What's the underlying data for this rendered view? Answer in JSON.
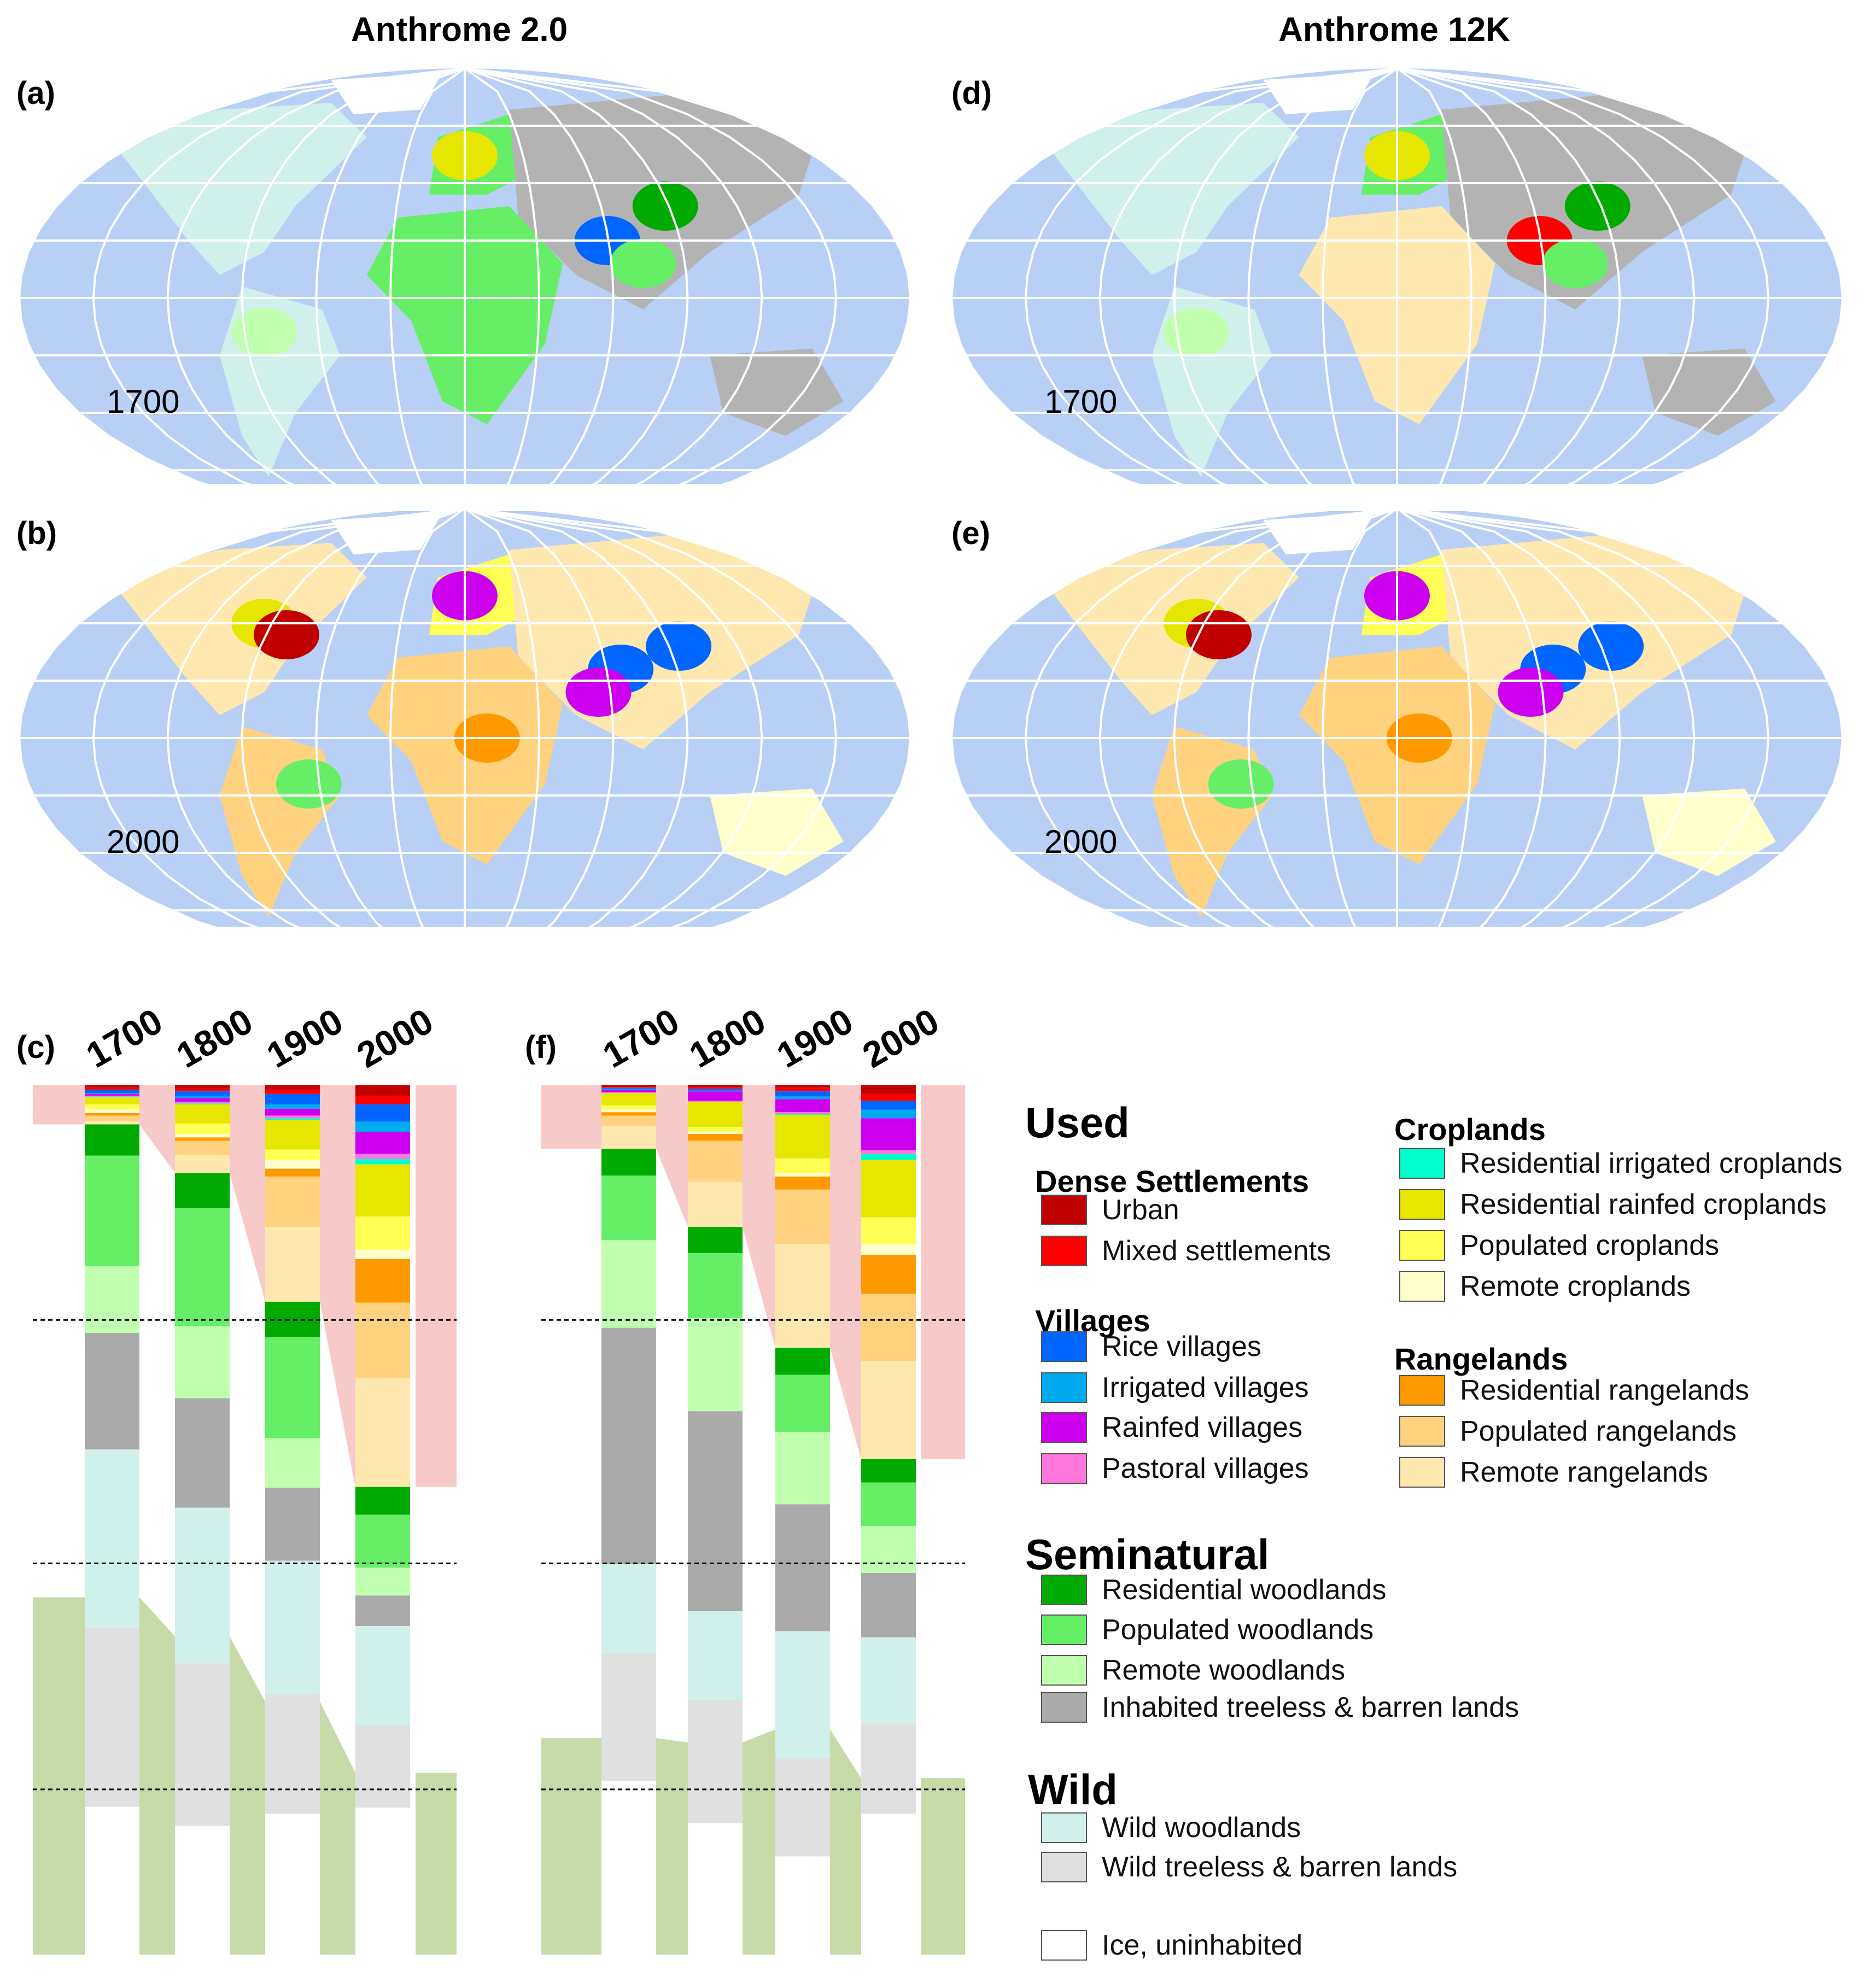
{
  "titles": {
    "left": "Anthrome 2.0",
    "right": "Anthrome 12K"
  },
  "panel_labels": {
    "a": "(a)",
    "b": "(b)",
    "c": "(c)",
    "d": "(d)",
    "e": "(e)",
    "f": "(f)"
  },
  "map_years": {
    "a": "1700",
    "b": "2000",
    "d": "1700",
    "e": "2000"
  },
  "colors": {
    "ocean": "#b8d0f5",
    "land_gray": "#b3b3b3",
    "shade_used": "#f7c9c9",
    "shade_wild": "#c6dba8",
    "urban": "#c00000",
    "mixed": "#ff0000",
    "rice": "#0066ff",
    "irrigated_vil": "#00aaee",
    "rainfed_vil": "#cc00ee",
    "pastoral": "#ff77dd",
    "res_irr_crop": "#00ffcc",
    "res_rain_crop": "#e6e600",
    "pop_crop": "#ffff55",
    "remote_crop": "#ffffcc",
    "res_range": "#ff9900",
    "pop_range": "#ffd280",
    "remote_range": "#ffe8b0",
    "res_wood": "#00aa00",
    "pop_wood": "#66ee66",
    "remote_wood": "#c0ffb0",
    "inhabited_treeless": "#aaaaaa",
    "wild_wood": "#d0f0ec",
    "wild_treeless": "#e0e0e0",
    "ice": "#ffffff"
  },
  "legend": {
    "used": "Used",
    "dense": "Dense Settlements",
    "urban": "Urban",
    "mixed": "Mixed settlements",
    "villages": "Villages",
    "rice": "Rice villages",
    "irrigated": "Irrigated villages",
    "rainfed": "Rainfed villages",
    "pastoral": "Pastoral villages",
    "croplands": "Croplands",
    "res_irr_crop": "Residential irrigated croplands",
    "res_rain_crop": "Residential rainfed croplands",
    "pop_crop": "Populated croplands",
    "remote_crop": "Remote croplands",
    "rangelands": "Rangelands",
    "res_range": "Residential rangelands",
    "pop_range": "Populated rangelands",
    "remote_range": "Remote rangelands",
    "seminatural": "Seminatural",
    "res_wood": "Residential woodlands",
    "pop_wood": "Populated woodlands",
    "remote_wood": "Remote woodlands",
    "inhabited": "Inhabited treeless & barren lands",
    "wild": "Wild",
    "wild_wood": "Wild woodlands",
    "wild_treeless": "Wild treeless & barren lands",
    "ice": "Ice, uninhabited"
  },
  "chart_data": [
    {
      "type": "bar",
      "stacked": true,
      "unit": "fraction of ice-free land",
      "categories": [
        "1700",
        "1800",
        "1900",
        "2000"
      ],
      "series": [
        {
          "name": "Urban",
          "color_key": "urban",
          "values": [
            0.003,
            0.004,
            0.005,
            0.012
          ]
        },
        {
          "name": "Mixed settlements",
          "color_key": "mixed",
          "values": [
            0.002,
            0.003,
            0.005,
            0.01
          ]
        },
        {
          "name": "Rice villages",
          "color_key": "rice",
          "values": [
            0.004,
            0.006,
            0.012,
            0.02
          ]
        },
        {
          "name": "Irrigated villages",
          "color_key": "irrigated_vil",
          "values": [
            0.001,
            0.002,
            0.005,
            0.012
          ]
        },
        {
          "name": "Rainfed villages",
          "color_key": "rainfed_vil",
          "values": [
            0.002,
            0.004,
            0.008,
            0.025
          ]
        },
        {
          "name": "Pastoral villages",
          "color_key": "pastoral",
          "values": [
            0.001,
            0.002,
            0.003,
            0.006
          ]
        },
        {
          "name": "Residential irrigated croplands",
          "color_key": "res_irr_crop",
          "values": [
            0.001,
            0.001,
            0.002,
            0.006
          ]
        },
        {
          "name": "Residential rainfed croplands",
          "color_key": "res_rain_crop",
          "values": [
            0.008,
            0.022,
            0.034,
            0.06
          ]
        },
        {
          "name": "Populated croplands",
          "color_key": "pop_crop",
          "values": [
            0.006,
            0.012,
            0.012,
            0.038
          ]
        },
        {
          "name": "Remote croplands",
          "color_key": "remote_crop",
          "values": [
            0.004,
            0.004,
            0.01,
            0.011
          ]
        },
        {
          "name": "Residential rangelands",
          "color_key": "res_range",
          "values": [
            0.003,
            0.004,
            0.009,
            0.05
          ]
        },
        {
          "name": "Populated rangelands",
          "color_key": "pop_range",
          "values": [
            0.006,
            0.016,
            0.058,
            0.087
          ]
        },
        {
          "name": "Remote rangelands",
          "color_key": "remote_range",
          "values": [
            0.004,
            0.021,
            0.086,
            0.125
          ]
        },
        {
          "name": "Residential woodlands",
          "color_key": "res_wood",
          "values": [
            0.036,
            0.04,
            0.041,
            0.032
          ]
        },
        {
          "name": "Populated woodlands",
          "color_key": "pop_wood",
          "values": [
            0.127,
            0.136,
            0.116,
            0.061
          ]
        },
        {
          "name": "Remote woodlands",
          "color_key": "remote_wood",
          "values": [
            0.077,
            0.083,
            0.057,
            0.032
          ]
        },
        {
          "name": "Inhabited treeless & barren lands",
          "color_key": "inhabited_treeless",
          "values": [
            0.134,
            0.126,
            0.084,
            0.035
          ]
        },
        {
          "name": "Wild woodlands",
          "color_key": "wild_wood",
          "values": [
            0.205,
            0.179,
            0.153,
            0.114
          ]
        },
        {
          "name": "Wild treeless & barren lands",
          "color_key": "wild_treeless",
          "values": [
            0.206,
            0.187,
            0.138,
            0.095
          ]
        }
      ]
    },
    {
      "type": "bar",
      "stacked": true,
      "unit": "fraction of ice-free land",
      "categories": [
        "1700",
        "1800",
        "1900",
        "2000"
      ],
      "series": [
        {
          "name": "Urban",
          "color_key": "urban",
          "values": [
            0.002,
            0.002,
            0.003,
            0.01
          ]
        },
        {
          "name": "Mixed settlements",
          "color_key": "mixed",
          "values": [
            0.001,
            0.002,
            0.004,
            0.008
          ]
        },
        {
          "name": "Rice villages",
          "color_key": "rice",
          "values": [
            0.001,
            0.002,
            0.006,
            0.01
          ]
        },
        {
          "name": "Irrigated villages",
          "color_key": "irrigated_vil",
          "values": [
            0.001,
            0.001,
            0.003,
            0.01
          ]
        },
        {
          "name": "Rainfed villages",
          "color_key": "rainfed_vil",
          "values": [
            0.003,
            0.011,
            0.015,
            0.037
          ]
        },
        {
          "name": "Pastoral villages",
          "color_key": "pastoral",
          "values": [
            0.001,
            0.001,
            0.002,
            0.004
          ]
        },
        {
          "name": "Residential irrigated croplands",
          "color_key": "res_irr_crop",
          "values": [
            0.0,
            0.0,
            0.001,
            0.007
          ]
        },
        {
          "name": "Residential rainfed croplands",
          "color_key": "res_rain_crop",
          "values": [
            0.014,
            0.029,
            0.05,
            0.066
          ]
        },
        {
          "name": "Populated croplands",
          "color_key": "pop_crop",
          "values": [
            0.005,
            0.006,
            0.017,
            0.031
          ]
        },
        {
          "name": "Remote croplands",
          "color_key": "remote_crop",
          "values": [
            0.003,
            0.002,
            0.004,
            0.012
          ]
        },
        {
          "name": "Residential rangelands",
          "color_key": "res_range",
          "values": [
            0.004,
            0.008,
            0.015,
            0.045
          ]
        },
        {
          "name": "Populated rangelands",
          "color_key": "pop_range",
          "values": [
            0.012,
            0.047,
            0.063,
            0.077
          ]
        },
        {
          "name": "Remote rangelands",
          "color_key": "remote_range",
          "values": [
            0.026,
            0.052,
            0.119,
            0.113
          ]
        },
        {
          "name": "Residential woodlands",
          "color_key": "res_wood",
          "values": [
            0.031,
            0.03,
            0.031,
            0.027
          ]
        },
        {
          "name": "Populated woodlands",
          "color_key": "pop_wood",
          "values": [
            0.074,
            0.075,
            0.066,
            0.05
          ]
        },
        {
          "name": "Remote woodlands",
          "color_key": "remote_wood",
          "values": [
            0.101,
            0.107,
            0.083,
            0.054
          ]
        },
        {
          "name": "Inhabited treeless & barren lands",
          "color_key": "inhabited_treeless",
          "values": [
            0.272,
            0.23,
            0.146,
            0.074
          ]
        },
        {
          "name": "Wild woodlands",
          "color_key": "wild_wood",
          "values": [
            0.102,
            0.102,
            0.146,
            0.099
          ]
        },
        {
          "name": "Wild treeless & barren lands",
          "color_key": "wild_treeless",
          "values": [
            0.147,
            0.142,
            0.113,
            0.104
          ]
        }
      ]
    }
  ]
}
